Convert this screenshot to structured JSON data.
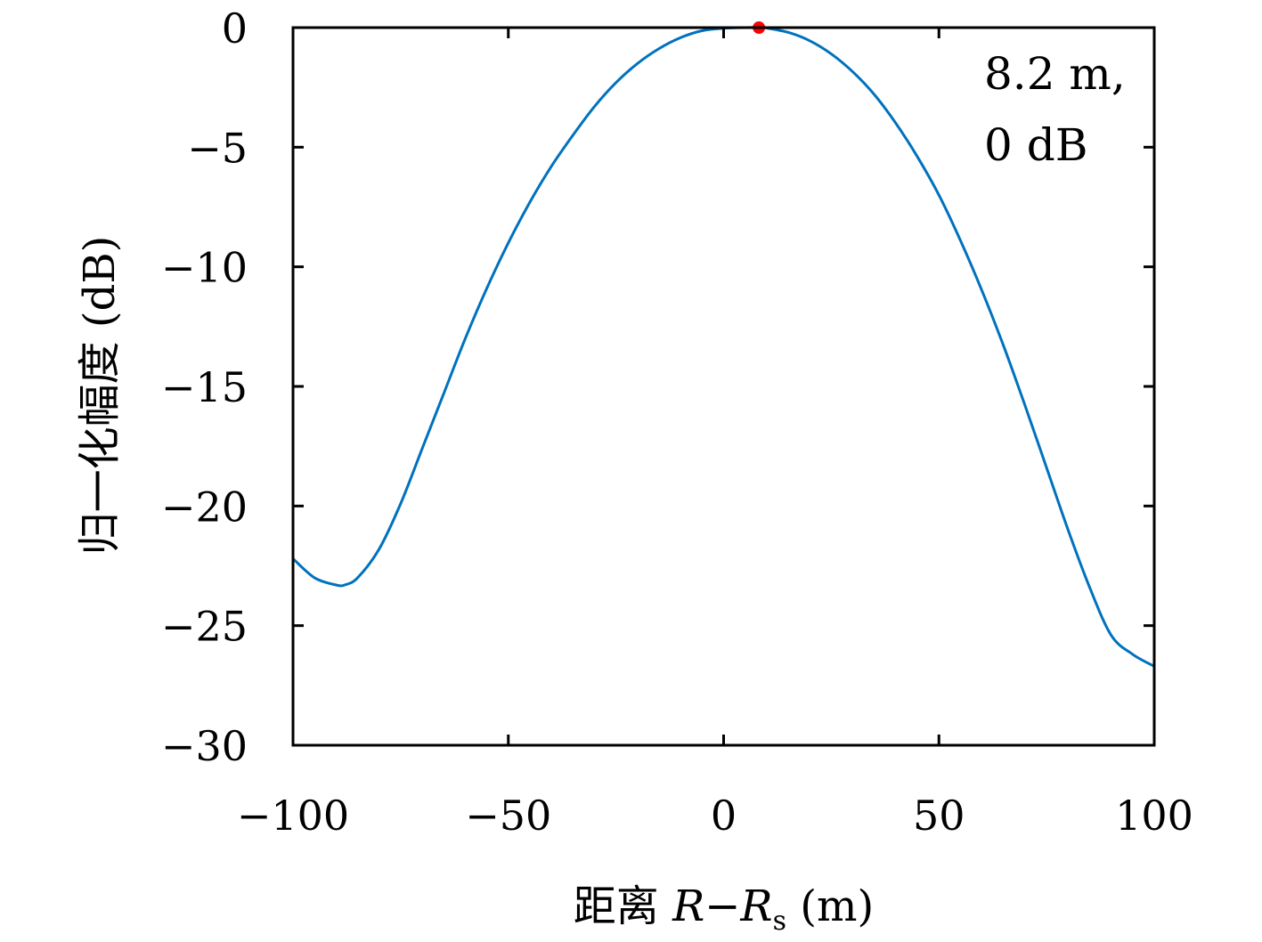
{
  "chart_data": {
    "type": "line",
    "title": "",
    "xlabel": "距离 R−Rs (m)",
    "xlabel_parts": {
      "prefix": "距离 ",
      "var1": "R",
      "minus": "−",
      "var2": "R",
      "sub": "s",
      "suffix": " (m)"
    },
    "ylabel": "归一化幅度 (dB)",
    "xlim": [
      -100,
      100
    ],
    "ylim": [
      -30,
      0
    ],
    "xticks": [
      -100,
      -50,
      0,
      50,
      100
    ],
    "xtick_labels": [
      "−100",
      "−50",
      "0",
      "50",
      "100"
    ],
    "yticks": [
      0,
      -5,
      -10,
      -15,
      -20,
      -25,
      -30
    ],
    "ytick_labels": [
      "0",
      "−5",
      "−10",
      "−15",
      "−20",
      "−25",
      "−30"
    ],
    "grid": false,
    "line_color": "#0072BD",
    "marker_color": "#FF0000",
    "series": [
      {
        "x": [
          -100,
          -95,
          -90,
          -88,
          -85,
          -80,
          -75,
          -70,
          -65,
          -60,
          -55,
          -50,
          -45,
          -40,
          -35,
          -30,
          -25,
          -20,
          -15,
          -10,
          -5,
          0,
          5,
          8.2,
          10,
          15,
          20,
          25,
          30,
          35,
          40,
          45,
          50,
          55,
          60,
          65,
          70,
          75,
          80,
          85,
          90,
          95,
          100
        ],
        "y": [
          -22.2,
          -23.0,
          -23.3,
          -23.3,
          -23.0,
          -21.8,
          -19.9,
          -17.6,
          -15.3,
          -13.0,
          -10.9,
          -9.0,
          -7.3,
          -5.8,
          -4.5,
          -3.3,
          -2.3,
          -1.5,
          -0.88,
          -0.42,
          -0.13,
          -0.03,
          0.0,
          0.0,
          -0.02,
          -0.2,
          -0.55,
          -1.1,
          -1.85,
          -2.8,
          -4.0,
          -5.4,
          -7.0,
          -8.9,
          -11.0,
          -13.3,
          -15.8,
          -18.4,
          -21.0,
          -23.4,
          -25.4,
          -26.2,
          -26.7
        ]
      }
    ],
    "marker": {
      "x": 8.2,
      "y": 0
    },
    "annotation": [
      "8.2 m,",
      "0 dB"
    ]
  }
}
